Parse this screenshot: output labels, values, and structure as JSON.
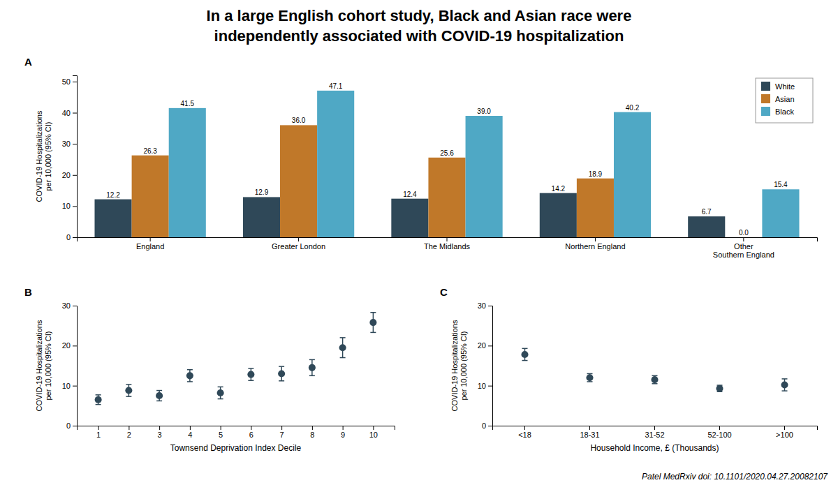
{
  "title": "In a large English cohort study, Black and Asian race were\nindependently associated with COVID-19 hospitalization",
  "annotations": [
    "Patel  MedRxiv doi: 10.1101/2020.04.27.20082107"
  ],
  "chart_data": [
    {
      "type": "bar",
      "annotations": [
        "A"
      ],
      "categories": [
        "England",
        "Greater London",
        "The Midlands",
        "Northern England",
        "Other\nSouthern England"
      ],
      "series": [
        {
          "name": "White",
          "color": "#2f4858",
          "values": [
            12.2,
            12.9,
            12.4,
            14.2,
            6.7
          ],
          "value_labels": [
            "12.2",
            "12.9",
            "12.4",
            "14.2",
            "6.7"
          ]
        },
        {
          "name": "Asian",
          "color": "#c07829",
          "values": [
            26.3,
            36.0,
            25.6,
            18.9,
            0.0
          ],
          "value_labels": [
            "26.3",
            "36.0",
            "25.6",
            "18.9",
            "0.0"
          ]
        },
        {
          "name": "Black",
          "color": "#4fa8c5",
          "values": [
            41.5,
            47.1,
            39.0,
            40.2,
            15.4
          ],
          "value_labels": [
            "41.5",
            "47.1",
            "39.0",
            "40.2",
            "15.4"
          ]
        }
      ],
      "ylabel": "COVID-19 Hospitalizations\nper 10,000 (95% CI)",
      "ylim": [
        0,
        52
      ],
      "yticks": [
        0,
        10,
        20,
        30,
        40,
        50
      ],
      "data_labels": true,
      "legend": "upper right",
      "grid": false
    },
    {
      "type": "scatter",
      "annotations": [
        "B"
      ],
      "x": [
        1,
        2,
        3,
        4,
        5,
        6,
        7,
        8,
        9,
        10
      ],
      "values": [
        6.5,
        8.8,
        7.5,
        12.5,
        8.2,
        12.8,
        13.0,
        14.5,
        19.5,
        25.8
      ],
      "error_minus": [
        1.2,
        1.5,
        1.3,
        1.5,
        1.5,
        1.5,
        1.8,
        2.0,
        2.5,
        2.5
      ],
      "error_plus": [
        1.2,
        1.5,
        1.3,
        1.5,
        1.5,
        1.5,
        1.8,
        2.0,
        2.5,
        2.5
      ],
      "color": "#2f4858",
      "marker": "circle",
      "ylabel": "COVID-19 Hospitalizations\nper 10,000 (95% CI)",
      "xlabel": "Townsend Deprivation Index Decile",
      "xlim": [
        0.3,
        10.7
      ],
      "xticks": [
        1,
        2,
        3,
        4,
        5,
        6,
        7,
        8,
        9,
        10
      ],
      "ylim": [
        0,
        30
      ],
      "yticks": [
        0,
        10,
        20,
        30
      ],
      "grid": false
    },
    {
      "type": "scatter",
      "annotations": [
        "C"
      ],
      "categories": [
        "<18",
        "18-31",
        "31-52",
        "52-100",
        ">100"
      ],
      "values": [
        17.8,
        12.0,
        11.5,
        9.3,
        10.2
      ],
      "error_minus": [
        1.5,
        1.0,
        1.0,
        0.8,
        1.5
      ],
      "error_plus": [
        1.5,
        1.0,
        1.0,
        0.8,
        1.5
      ],
      "color": "#2f4858",
      "marker": "circle",
      "ylabel": "COVID-19 Hospitalizations\nper 10,000 (95% CI)",
      "xlabel": "Household Income, £ (Thousands)",
      "ylim": [
        0,
        30
      ],
      "yticks": [
        0,
        10,
        20,
        30
      ],
      "grid": false
    }
  ]
}
